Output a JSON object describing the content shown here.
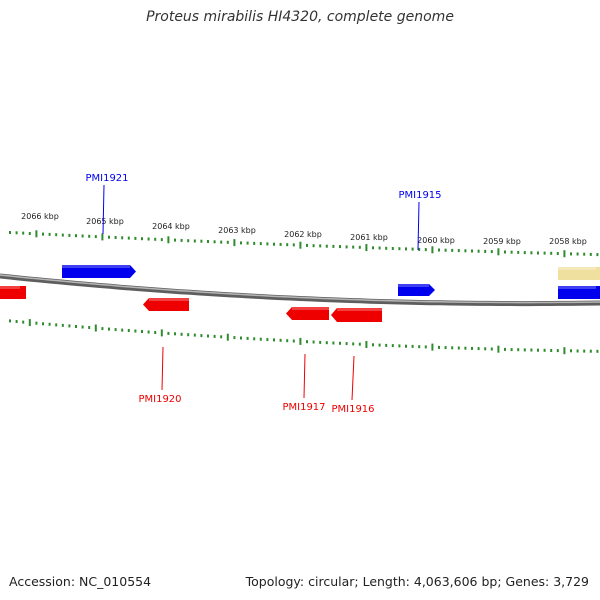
{
  "title": "Proteus mirabilis HI4320, complete genome",
  "footer": {
    "accession": "Accession: NC_010554",
    "stats": "Topology: circular; Length: 4,063,606 bp; Genes: 3,729"
  },
  "colors": {
    "backbone": "#8a8a8a",
    "tick": "#2e8b2e",
    "forward_gene": "#0000ee",
    "reverse_gene": "#ee0000",
    "other_feature": "#f0e0a0"
  },
  "scale": {
    "unit": "kbp",
    "labels": [
      "2066 kbp",
      "2065 kbp",
      "2064 kbp",
      "2063 kbp",
      "2062 kbp",
      "2061 kbp",
      "2060 kbp",
      "2059 kbp",
      "2058 kbp"
    ]
  },
  "genes": [
    {
      "name": "PMI1921",
      "strand": "forward"
    },
    {
      "name": "PMI1915",
      "strand": "forward"
    },
    {
      "name": "PMI1920",
      "strand": "reverse"
    },
    {
      "name": "PMI1917",
      "strand": "reverse"
    },
    {
      "name": "PMI1916",
      "strand": "reverse"
    }
  ]
}
